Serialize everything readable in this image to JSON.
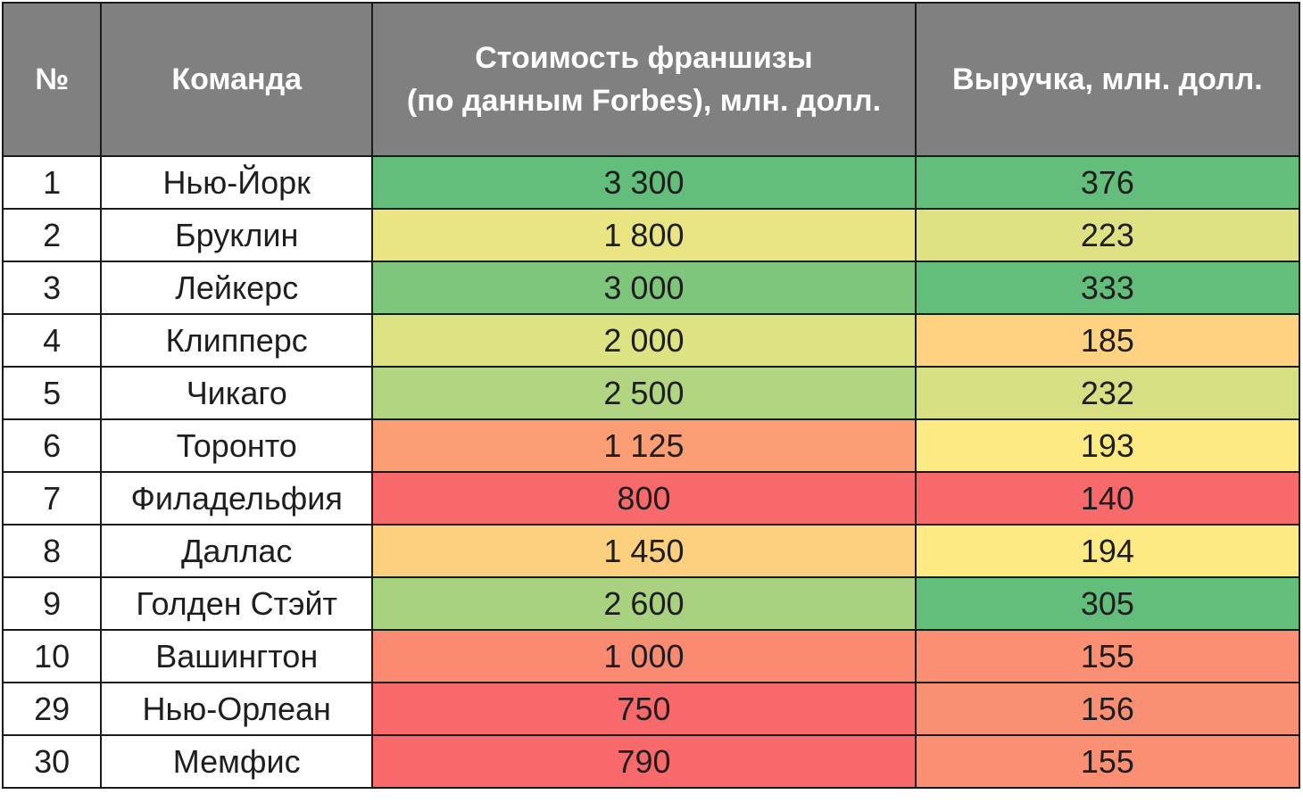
{
  "header": {
    "num": "№",
    "team": "Команда",
    "value_line1": "Стоимость франшизы",
    "value_line2": "(по данным Forbes), млн. долл.",
    "revenue": "Выручка, млн. долл."
  },
  "rows": [
    {
      "num": "1",
      "team": "Нью-Йорк",
      "value": "3 300",
      "revenue": "376",
      "value_color": "#63be7b",
      "revenue_color": "#63be7b"
    },
    {
      "num": "2",
      "team": "Бруклин",
      "value": "1 800",
      "revenue": "223",
      "value_color": "#eae583",
      "revenue_color": "#dfe283"
    },
    {
      "num": "3",
      "team": "Лейкерс",
      "value": "3 000",
      "revenue": "333",
      "value_color": "#7fc67d",
      "revenue_color": "#63be7b"
    },
    {
      "num": "4",
      "team": "Клипперс",
      "value": "2 000",
      "revenue": "185",
      "value_color": "#dde283",
      "revenue_color": "#fed280"
    },
    {
      "num": "5",
      "team": "Чикаго",
      "value": "2 500",
      "revenue": "232",
      "value_color": "#b1d580",
      "revenue_color": "#d6e082"
    },
    {
      "num": "6",
      "team": "Торонто",
      "value": "1 125",
      "revenue": "193",
      "value_color": "#fb9d75",
      "revenue_color": "#feea83"
    },
    {
      "num": "7",
      "team": "Филадельфия",
      "value": "800",
      "revenue": "140",
      "value_color": "#f8696b",
      "revenue_color": "#f8696b"
    },
    {
      "num": "8",
      "team": "Даллас",
      "value": "1 450",
      "revenue": "194",
      "value_color": "#fdd07f",
      "revenue_color": "#feea83"
    },
    {
      "num": "9",
      "team": "Голден Стэйт",
      "value": "2 600",
      "revenue": "305",
      "value_color": "#a8d27f",
      "revenue_color": "#63be7b"
    },
    {
      "num": "10",
      "team": "Вашингтон",
      "value": "1 000",
      "revenue": "155",
      "value_color": "#fa8b72",
      "revenue_color": "#fa8f73"
    },
    {
      "num": "29",
      "team": "Нью-Орлеан",
      "value": "750",
      "revenue": "156",
      "value_color": "#f8696b",
      "revenue_color": "#fa9073"
    },
    {
      "num": "30",
      "team": "Мемфис",
      "value": "790",
      "revenue": "155",
      "value_color": "#f8696b",
      "revenue_color": "#fa8f73"
    }
  ]
}
